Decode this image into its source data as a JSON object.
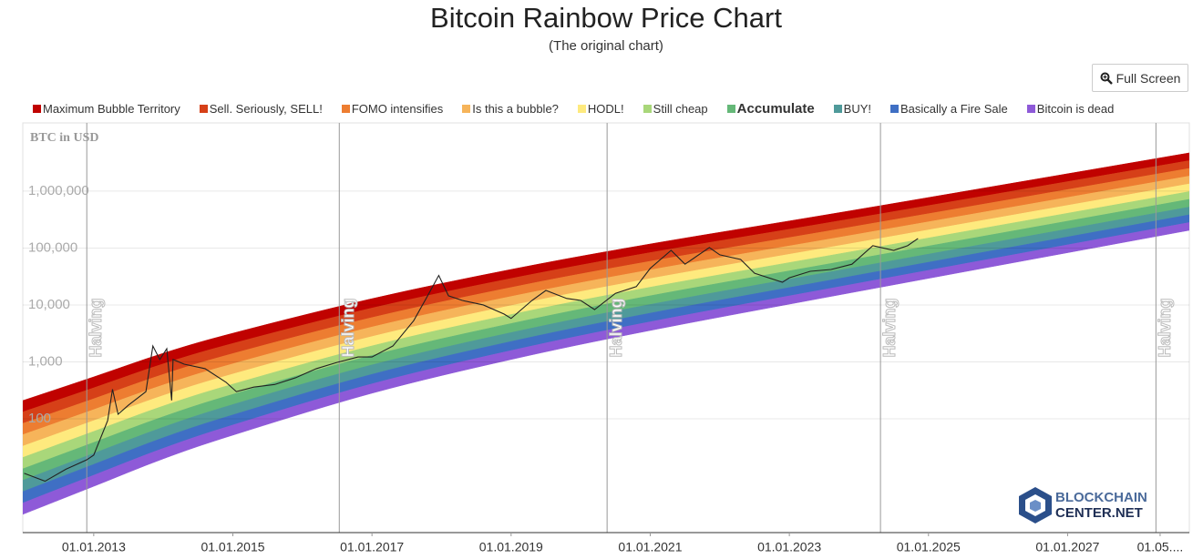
{
  "toolbar": {
    "full_screen": "Full Screen"
  },
  "watermark": {
    "line1": "BLOCKCHAIN",
    "line2": "CENTER.NET"
  },
  "chart_data": {
    "type": "rainbow",
    "title": "Bitcoin Rainbow Price Chart",
    "subtitle": "(The original chart)",
    "y_axis_label": "BTC in USD",
    "log_y": true,
    "grid": true,
    "xlim": [
      2011.98,
      2028.75
    ],
    "ylim": [
      1,
      15800000
    ],
    "xticks": [
      {
        "value": 2013,
        "label": "01.01.2013"
      },
      {
        "value": 2015,
        "label": "01.01.2015"
      },
      {
        "value": 2017,
        "label": "01.01.2017"
      },
      {
        "value": 2019,
        "label": "01.01.2019"
      },
      {
        "value": 2021,
        "label": "01.01.2021"
      },
      {
        "value": 2023,
        "label": "01.01.2023"
      },
      {
        "value": 2025,
        "label": "01.01.2025"
      },
      {
        "value": 2027,
        "label": "01.01.2027"
      },
      {
        "value": 2028.33,
        "label": "01.05...."
      }
    ],
    "yticks": [
      100,
      {
        "value": 1000,
        "label": "1,000"
      },
      {
        "value": 10000,
        "label": "10,000"
      },
      {
        "value": 100000,
        "label": "100,000"
      },
      {
        "value": 1000000,
        "label": "1,000,000"
      }
    ],
    "annotations": [
      {
        "text": "Halving",
        "x": 2012.9
      },
      {
        "text": "Halving",
        "x": 2016.53
      },
      {
        "text": "Halving",
        "x": 2020.38
      },
      {
        "text": "Halving",
        "x": 2024.31
      },
      {
        "text": "Halving",
        "x": 2028.27
      }
    ],
    "x": [
      2011.98,
      2013,
      2014,
      2015,
      2017,
      2019,
      2021,
      2024,
      2028.75
    ],
    "series": [
      {
        "name": "Maximum Bubble Territory",
        "color": "#c00200",
        "values": [
          209,
          545,
          1420,
          3190,
          12900,
          42100,
          118000,
          479000,
          4700000
        ]
      },
      {
        "name": "Sell. Seriously, SELL!",
        "color": "#d64018",
        "values": [
          132,
          350,
          925,
          2110,
          8830,
          29200,
          83200,
          344000,
          3440000
        ]
      },
      {
        "name": "FOMO intensifies",
        "color": "#ed7d31",
        "values": [
          83,
          225,
          604,
          1400,
          6010,
          20300,
          58600,
          247000,
          2510000
        ]
      },
      {
        "name": "Is this a bubble?",
        "color": "#f6b45a",
        "values": [
          52.5,
          145,
          394,
          925,
          4100,
          14100,
          41300,
          177000,
          1840000
        ]
      },
      {
        "name": "HODL!",
        "color": "#feea7e",
        "values": [
          33.1,
          93,
          257,
          612,
          2790,
          9770,
          29100,
          127000,
          1340000
        ]
      },
      {
        "name": "Still cheap",
        "color": "#a9d77a",
        "values": [
          20.9,
          60,
          168,
          406,
          1910,
          6790,
          20500,
          91200,
          982000
        ]
      },
      {
        "name": "Accumulate",
        "color": "#65b878",
        "legend_bold": true,
        "values": [
          13.2,
          38.4,
          109,
          269,
          1300,
          4720,
          14500,
          65500,
          718000
        ]
      },
      {
        "name": "BUY!",
        "color": "#4f9a9a",
        "values": [
          8.3,
          24.7,
          71.3,
          178,
          885,
          3270,
          10200,
          47000,
          525000
        ]
      },
      {
        "name": "Basically a Fire Sale",
        "color": "#3f6fc4",
        "values": [
          5.25,
          15.8,
          46.5,
          117,
          604,
          2280,
          7180,
          33700,
          384000
        ]
      },
      {
        "name": "Bitcoin is dead",
        "color": "#8e5ad8",
        "values": [
          3.31,
          10.2,
          30.3,
          77.8,
          411,
          1580,
          5060,
          24200,
          281000
        ],
        "floor": [
          2.09,
          6.5,
          19.8,
          51.5,
          281,
          1100,
          3560,
          17400,
          205000
        ]
      }
    ],
    "price": {
      "color": "#222222",
      "x": [
        2012.0,
        2012.3,
        2012.6,
        2012.9,
        2013.0,
        2013.2,
        2013.27,
        2013.35,
        2013.5,
        2013.75,
        2013.85,
        2013.95,
        2014.05,
        2014.12,
        2014.14,
        2014.3,
        2014.6,
        2014.9,
        2015.05,
        2015.3,
        2015.6,
        2015.9,
        2016.2,
        2016.5,
        2016.8,
        2017.0,
        2017.3,
        2017.6,
        2017.8,
        2017.96,
        2018.1,
        2018.3,
        2018.6,
        2018.9,
        2019.0,
        2019.3,
        2019.5,
        2019.8,
        2020.0,
        2020.2,
        2020.5,
        2020.8,
        2021.0,
        2021.3,
        2021.5,
        2021.85,
        2022.0,
        2022.3,
        2022.5,
        2022.9,
        2023.0,
        2023.3,
        2023.6,
        2023.9,
        2024.2,
        2024.5,
        2024.7,
        2024.85
      ],
      "values": [
        11,
        8,
        13,
        19,
        23,
        93,
        330,
        120,
        174,
        300,
        1900,
        1100,
        1700,
        210,
        1100,
        910,
        760,
        440,
        300,
        360,
        400,
        525,
        760,
        980,
        1220,
        1220,
        1900,
        5300,
        14500,
        33000,
        14500,
        12000,
        10000,
        6900,
        5800,
        12000,
        18000,
        13000,
        12000,
        8300,
        16000,
        21000,
        44000,
        91000,
        52000,
        102000,
        76000,
        63000,
        36000,
        25000,
        30000,
        39000,
        42000,
        52000,
        110000,
        91000,
        110000,
        147000
      ]
    }
  }
}
